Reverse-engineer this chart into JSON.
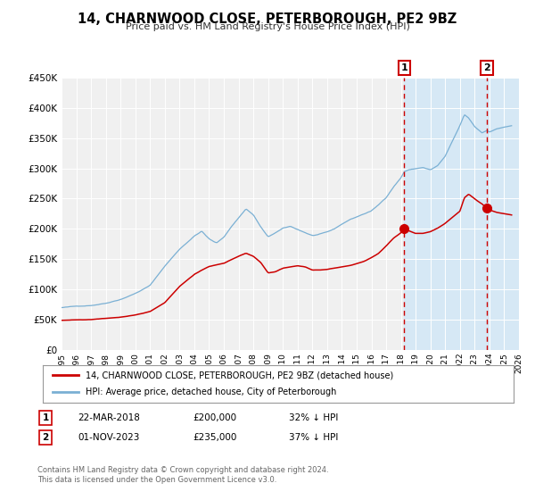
{
  "title": "14, CHARNWOOD CLOSE, PETERBOROUGH, PE2 9BZ",
  "subtitle": "Price paid vs. HM Land Registry's House Price Index (HPI)",
  "legend_line1": "14, CHARNWOOD CLOSE, PETERBOROUGH, PE2 9BZ (detached house)",
  "legend_line2": "HPI: Average price, detached house, City of Peterborough",
  "annotation1_date": "22-MAR-2018",
  "annotation1_price": "£200,000",
  "annotation1_hpi": "32% ↓ HPI",
  "annotation2_date": "01-NOV-2023",
  "annotation2_price": "£235,000",
  "annotation2_hpi": "37% ↓ HPI",
  "footer1": "Contains HM Land Registry data © Crown copyright and database right 2024.",
  "footer2": "This data is licensed under the Open Government Licence v3.0.",
  "hpi_color": "#7ab0d4",
  "price_color": "#cc0000",
  "dashed_color": "#cc0000",
  "marker_color": "#cc0000",
  "background_color": "#ffffff",
  "plot_bg_color": "#f0f0f0",
  "shade_color": "#d6e8f5",
  "ylim": [
    0,
    450000
  ],
  "xlim_start": 1995,
  "xlim_end": 2026,
  "sale1_year": 2018.22,
  "sale1_price": 200000,
  "sale2_year": 2023.83,
  "sale2_price": 235000
}
